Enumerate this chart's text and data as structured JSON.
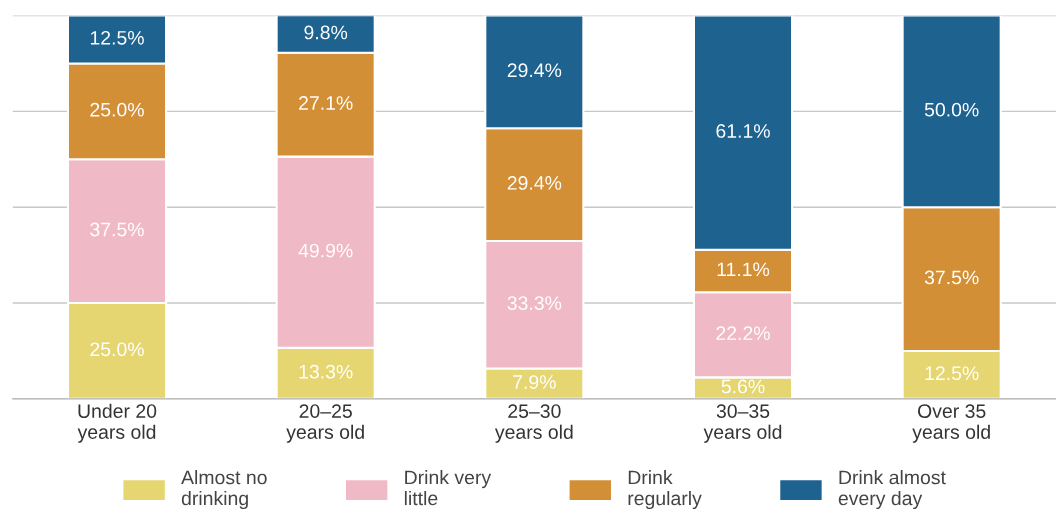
{
  "chart_data": {
    "type": "bar",
    "stacked": true,
    "categories": [
      "Under 20\nyears old",
      "20–25\nyears old",
      "25–30\nyears old",
      "30–35\nyears old",
      "Over 35\nyears old"
    ],
    "series": [
      {
        "name": "Almost no\ndrinking",
        "color": "#e6d672",
        "values": [
          25.0,
          13.3,
          7.9,
          5.6,
          12.5
        ],
        "value_labels": [
          "25.0%",
          "13.3%",
          "7.9%",
          "5.6%",
          "12.5%"
        ]
      },
      {
        "name": "Drink very\nlittle",
        "color": "#f0b9c6",
        "values": [
          37.5,
          49.9,
          33.3,
          22.2,
          null
        ],
        "value_labels": [
          "37.5%",
          "49.9%",
          "33.3%",
          "22.2%",
          null
        ]
      },
      {
        "name": "Drink\nregularly",
        "color": "#d38f36",
        "values": [
          25.0,
          27.1,
          29.4,
          11.1,
          37.5
        ],
        "value_labels": [
          "25.0%",
          "27.1%",
          "29.4%",
          "11.1%",
          "37.5%"
        ]
      },
      {
        "name": "Drink almost\nevery day",
        "color": "#1e6290",
        "values": [
          12.5,
          9.8,
          29.4,
          61.1,
          50.0
        ],
        "value_labels": [
          "12.5%",
          "9.8%",
          "29.4%",
          "61.1%",
          "50.0%"
        ]
      }
    ],
    "ylim": [
      0,
      100
    ],
    "yticks": [
      {
        "value": 0,
        "label": null
      },
      {
        "value": 25,
        "label": null
      },
      {
        "value": 50,
        "label": null
      },
      {
        "value": 75,
        "label": null
      },
      {
        "value": 100,
        "label": null
      }
    ],
    "grid": "y",
    "tick_labels": "x",
    "legend": "bottom"
  }
}
